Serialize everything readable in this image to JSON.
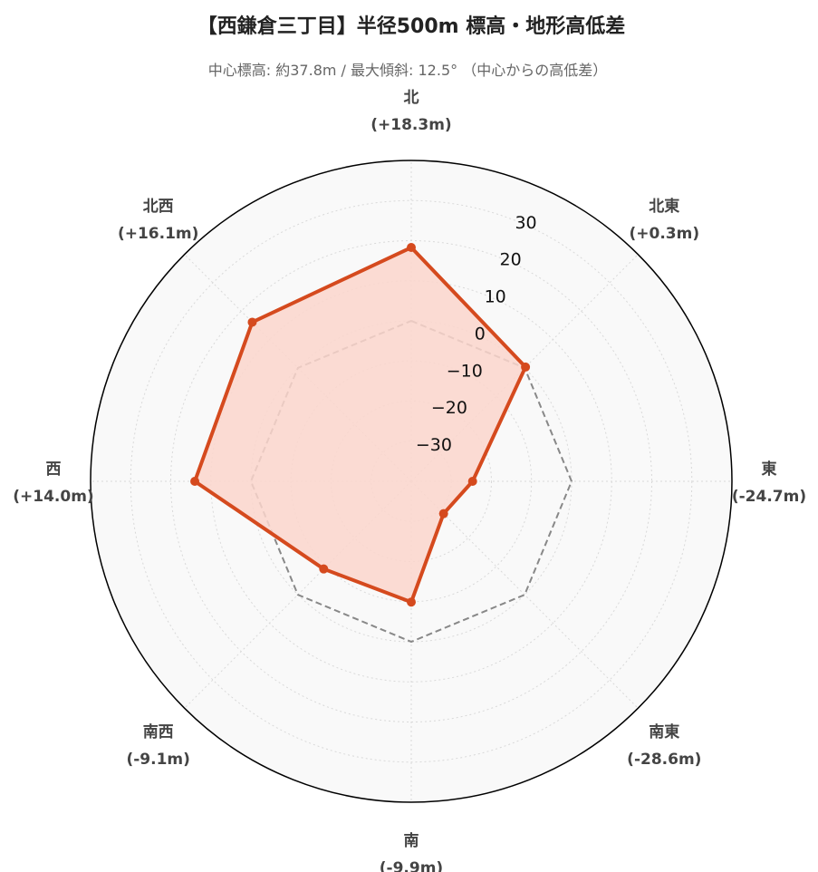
{
  "chart_data": {
    "type": "radar",
    "title": "【西鎌倉三丁目】半径500m 標高・地形高低差",
    "subtitle": "中心標高: 約37.8m / 最大傾斜: 12.5° （中心からの高低差）",
    "directions": [
      {
        "name": "北",
        "label": "(+18.3m)"
      },
      {
        "name": "北東",
        "label": "(+0.3m)"
      },
      {
        "name": "東",
        "label": "(-24.7m)"
      },
      {
        "name": "南東",
        "label": "(-28.6m)"
      },
      {
        "name": "南",
        "label": "(-9.9m)"
      },
      {
        "name": "南西",
        "label": "(-9.1m)"
      },
      {
        "name": "西",
        "label": "(+14.0m)"
      },
      {
        "name": "北西",
        "label": "(+16.1m)"
      }
    ],
    "series": [
      {
        "values": [
          18.3,
          0.3,
          -24.7,
          -28.6,
          -9.9,
          -9.1,
          14.0,
          16.1
        ],
        "color": "#d54a1e",
        "fill": "#fcd6cc",
        "style": "solid"
      },
      {
        "values": [
          0,
          0,
          0,
          0,
          0,
          0,
          0,
          0
        ],
        "color": "#888888",
        "style": "dashed"
      }
    ],
    "radial_ticks": [
      {
        "value": -30,
        "label": "−30"
      },
      {
        "value": -20,
        "label": "−20"
      },
      {
        "value": -10,
        "label": "−10"
      },
      {
        "value": 0,
        "label": "0"
      },
      {
        "value": 10,
        "label": "10"
      },
      {
        "value": 20,
        "label": "20"
      },
      {
        "value": 30,
        "label": "30"
      }
    ],
    "rlim": [
      -40,
      40
    ],
    "grid": true,
    "colors": {
      "plot_bg": "#f9f9f9",
      "grid": "#d9d9d9",
      "outer_ring": "#000000"
    }
  }
}
